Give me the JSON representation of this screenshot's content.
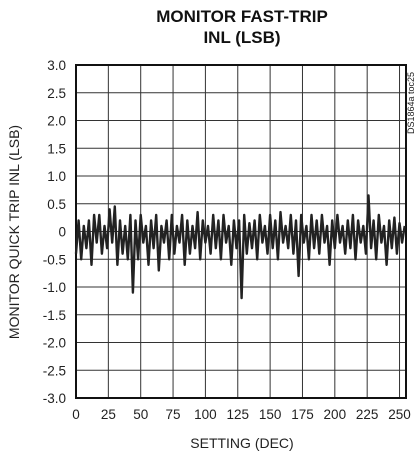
{
  "chart_data": {
    "type": "line",
    "title_line1": "MONITOR FAST-TRIP",
    "title_line2": "INL (LSB)",
    "xlabel": "SETTING (DEC)",
    "ylabel": "MONITOR QUICK TRIP INL (LSB)",
    "side_label": "DS1864a toc25",
    "xlim": [
      0,
      255
    ],
    "ylim": [
      -3.0,
      3.0
    ],
    "grid": true,
    "x_ticks": [
      0,
      25,
      50,
      75,
      100,
      125,
      150,
      175,
      200,
      225,
      250
    ],
    "y_ticks": [
      3.0,
      2.5,
      2.0,
      1.5,
      1.0,
      0.5,
      0,
      -0.5,
      -1.0,
      -1.5,
      -2.0,
      -2.5,
      -3.0
    ],
    "x_tick_labels": [
      "0",
      "25",
      "50",
      "75",
      "100",
      "125",
      "150",
      "175",
      "200",
      "225",
      "250"
    ],
    "y_tick_labels": [
      "3.0",
      "2.5",
      "2.0",
      "1.5",
      "1.0",
      "0.5",
      "0",
      "-0.5",
      "-1.0",
      "-1.5",
      "-2.0",
      "-2.5",
      "-3.0"
    ],
    "series": [
      {
        "color": "#222222",
        "x": [
          0,
          2,
          4,
          6,
          8,
          10,
          12,
          14,
          16,
          18,
          20,
          22,
          24,
          26,
          28,
          30,
          32,
          34,
          36,
          38,
          40,
          42,
          44,
          46,
          48,
          50,
          52,
          54,
          56,
          58,
          60,
          62,
          64,
          66,
          68,
          70,
          72,
          74,
          76,
          78,
          80,
          82,
          84,
          86,
          88,
          90,
          92,
          94,
          96,
          98,
          100,
          102,
          104,
          106,
          108,
          110,
          112,
          114,
          116,
          118,
          120,
          122,
          124,
          126,
          128,
          130,
          132,
          134,
          136,
          138,
          140,
          142,
          144,
          146,
          148,
          150,
          152,
          154,
          156,
          158,
          160,
          162,
          164,
          166,
          168,
          170,
          172,
          174,
          176,
          178,
          180,
          182,
          184,
          186,
          188,
          190,
          192,
          194,
          196,
          198,
          200,
          202,
          204,
          206,
          208,
          210,
          212,
          214,
          216,
          218,
          220,
          222,
          224,
          226,
          228,
          230,
          232,
          234,
          236,
          238,
          240,
          242,
          244,
          246,
          248,
          250,
          252,
          254
        ],
        "y": [
          -0.4,
          0.2,
          -0.5,
          0.1,
          -0.3,
          0.2,
          -0.6,
          0.3,
          -0.2,
          0.3,
          -0.4,
          0.1,
          -0.3,
          0.4,
          -0.2,
          0.45,
          -0.6,
          0.2,
          -0.4,
          0.1,
          -0.5,
          0.3,
          -1.1,
          0.2,
          -0.5,
          0.3,
          -0.2,
          0.1,
          -0.6,
          0.2,
          -0.3,
          0.3,
          -0.7,
          0.1,
          -0.2,
          0.2,
          -0.5,
          0.3,
          -0.4,
          0.1,
          -0.2,
          0.3,
          -0.6,
          0.2,
          -0.4,
          0.1,
          -0.3,
          0.35,
          -0.5,
          0.2,
          -0.2,
          0.1,
          -0.4,
          0.3,
          -0.3,
          0.2,
          -0.5,
          0.3,
          -0.2,
          0.1,
          -0.6,
          0.2,
          -0.3,
          0.2,
          -1.2,
          0.3,
          -0.4,
          0.15,
          -0.3,
          0.2,
          -0.5,
          0.3,
          -0.2,
          0.1,
          -0.4,
          0.3,
          -0.3,
          0.2,
          -0.5,
          0.35,
          -0.2,
          0.1,
          -0.3,
          0.3,
          -0.4,
          0.2,
          -0.8,
          0.3,
          -0.2,
          0.1,
          -0.5,
          0.3,
          -0.3,
          0.2,
          -0.4,
          0.3,
          -0.2,
          0.1,
          -0.6,
          0.2,
          -0.3,
          0.3,
          -0.2,
          0.1,
          -0.4,
          0.2,
          -0.3,
          0.3,
          -0.5,
          0.2,
          -0.2,
          0.1,
          -0.4,
          0.65,
          -0.3,
          0.2,
          -0.5,
          0.3,
          -0.2,
          0.1,
          -0.6,
          0.2,
          -0.3,
          0.25,
          -0.4,
          0.15,
          -0.2,
          0.1
        ]
      }
    ]
  }
}
